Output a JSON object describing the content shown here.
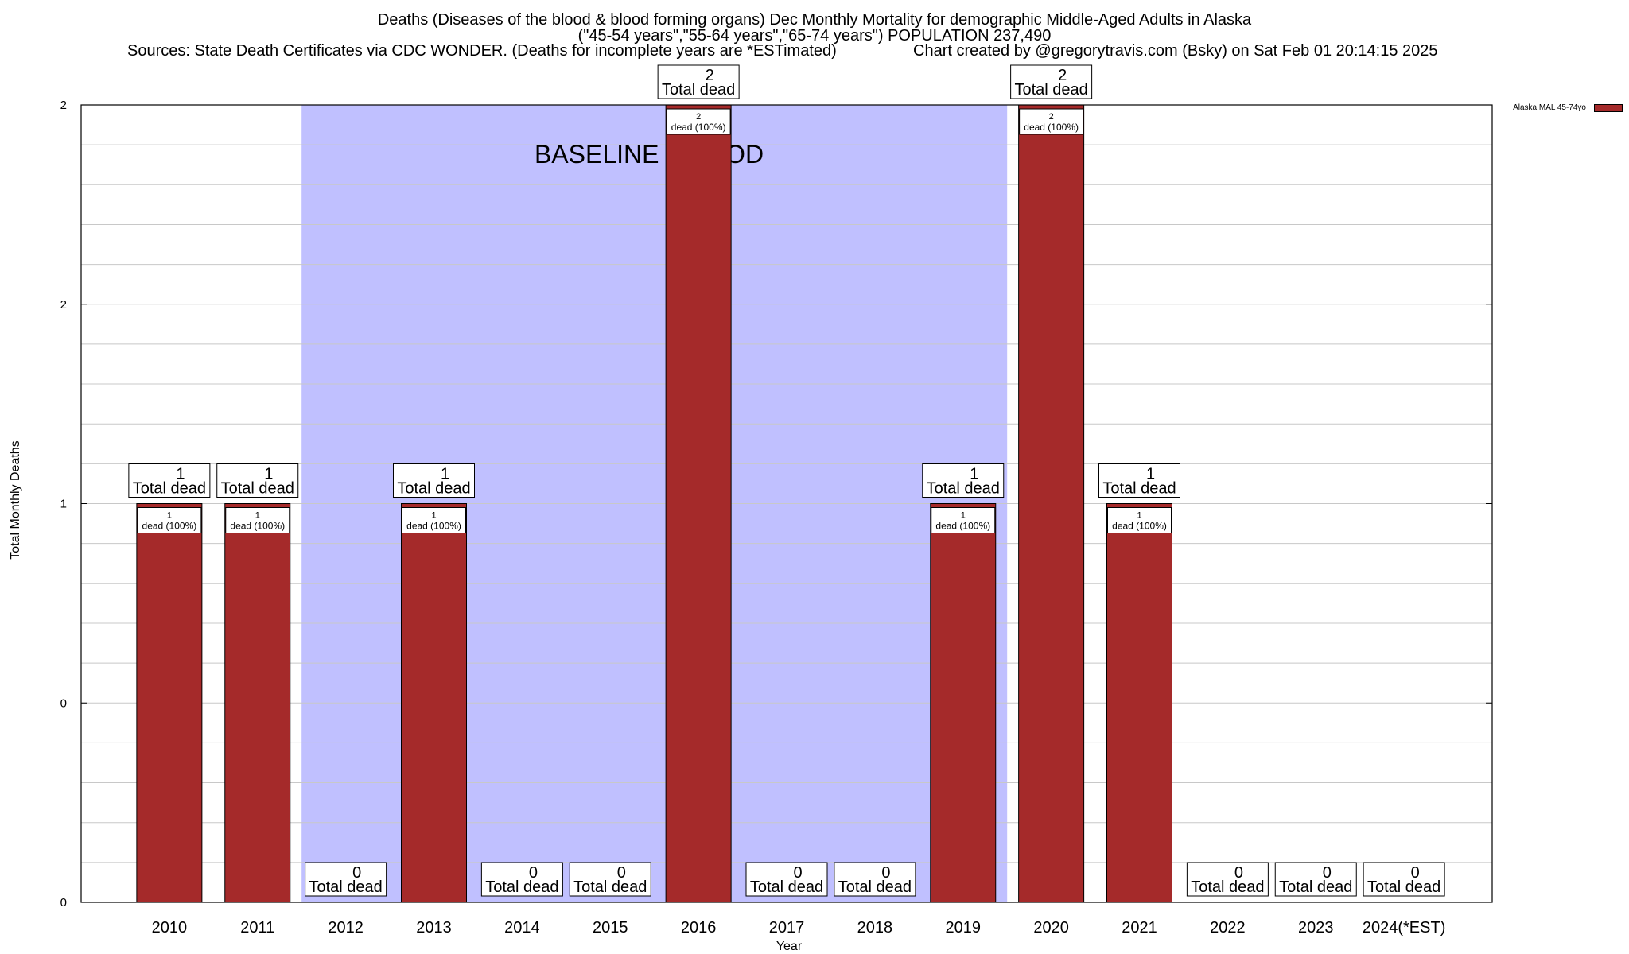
{
  "chart_data": {
    "type": "bar",
    "title_lines": [
      "Deaths (Diseases of the blood & blood forming organs) Dec Monthly Mortality for demographic Middle-Aged Adults in Alaska",
      "(\"45-54 years\",\"55-64 years\",\"65-74 years\") POPULATION 237,490"
    ],
    "source_text": "Sources: State Death Certificates via CDC WONDER. (Deaths for incomplete years are *ESTimated)",
    "credit_text": "Chart created by @gregorytravis.com (Bsky) on Sat Feb 01 20:14:15 2025",
    "xlabel": "Year",
    "ylabel": "Total Monthly Deaths",
    "categories": [
      "2010",
      "2011",
      "2012",
      "2013",
      "2014",
      "2015",
      "2016",
      "2017",
      "2018",
      "2019",
      "2020",
      "2021",
      "2022",
      "2023",
      "2024(*EST)"
    ],
    "series": [
      {
        "name": "Alaska MAL 45-74yo",
        "values": [
          1,
          1,
          0,
          1,
          0,
          0,
          2,
          0,
          0,
          1,
          2,
          1,
          0,
          0,
          0
        ],
        "color": "#a52a2a"
      }
    ],
    "ylim": [
      0,
      2
    ],
    "yticks": [
      "0",
      "0",
      "1",
      "2",
      "2"
    ],
    "total_label": "Total dead",
    "inner_label_suffix": "dead (100%)",
    "baseline": {
      "label": "BASELINE PERIOD",
      "from": "2012",
      "to": "2019",
      "color": "#c0c0ff"
    },
    "grid": true,
    "legend_position": "top-right"
  }
}
